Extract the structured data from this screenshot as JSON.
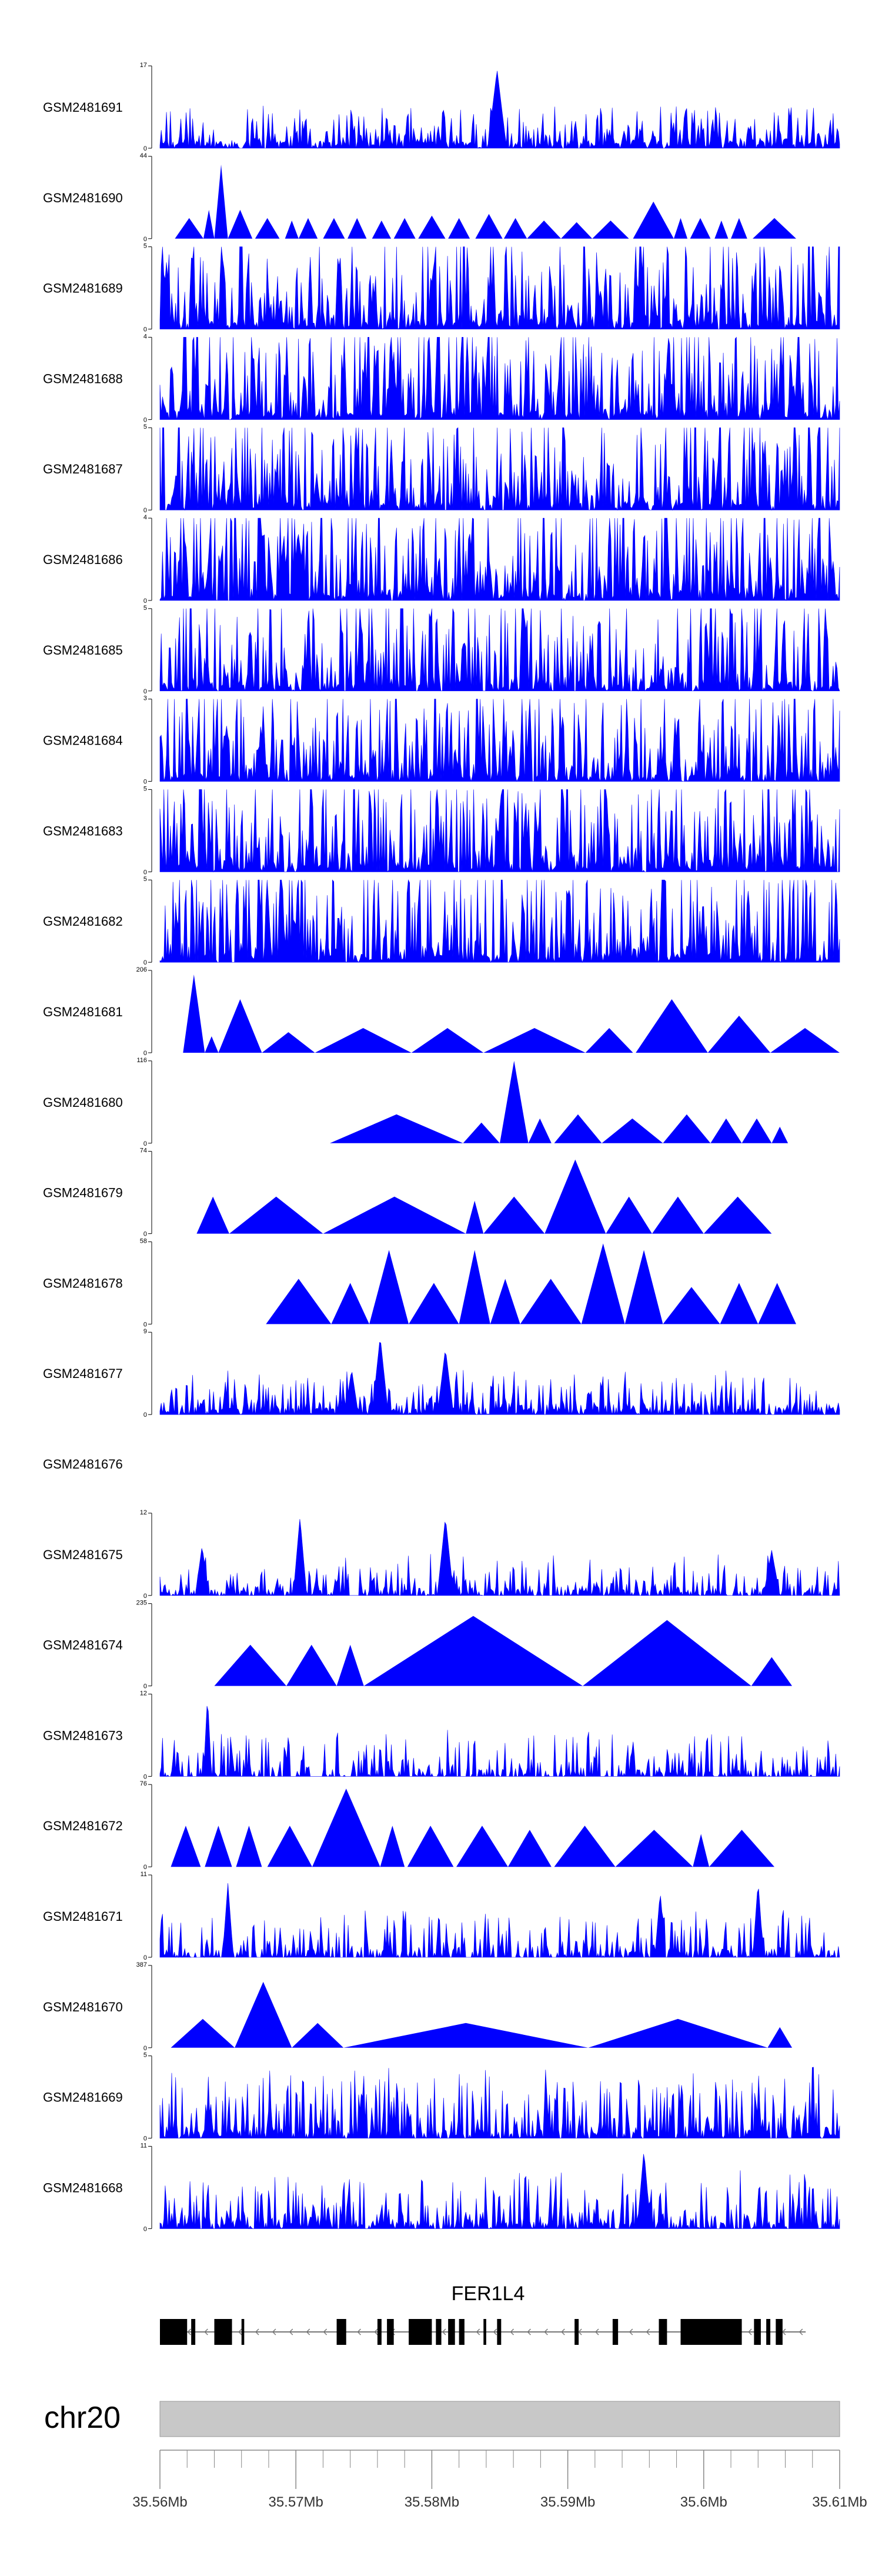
{
  "chart_data": {
    "type": "area",
    "color": "#0000ff",
    "x_range": [
      35.56,
      35.61
    ],
    "tracks": [
      {
        "label": "GSM2481691",
        "ymax": "17",
        "ymin": "0",
        "kind": "dense",
        "seed": 11,
        "density": 0.9,
        "peak_scale": 0.22,
        "features": [
          [
            35.5848,
            0.95,
            0.0007
          ]
        ]
      },
      {
        "label": "GSM2481690",
        "ymax": "44",
        "ymin": "0",
        "kind": "triangles",
        "tris": [
          [
            35.5611,
            35.5632,
            0.25
          ],
          [
            35.5632,
            35.564,
            0.35
          ],
          [
            35.564,
            35.565,
            0.9
          ],
          [
            35.565,
            35.5668,
            0.35
          ],
          [
            35.567,
            35.5688,
            0.25
          ],
          [
            35.5692,
            35.5702,
            0.22
          ],
          [
            35.5702,
            35.5716,
            0.25
          ],
          [
            35.572,
            35.5736,
            0.25
          ],
          [
            35.5738,
            35.5752,
            0.25
          ],
          [
            35.5756,
            35.577,
            0.22
          ],
          [
            35.5772,
            35.5788,
            0.25
          ],
          [
            35.579,
            35.581,
            0.28
          ],
          [
            35.5812,
            35.5828,
            0.25
          ],
          [
            35.5832,
            35.5852,
            0.3
          ],
          [
            35.5853,
            35.587,
            0.25
          ],
          [
            35.587,
            35.5895,
            0.22
          ],
          [
            35.5895,
            35.5918,
            0.2
          ],
          [
            35.5918,
            35.5945,
            0.22
          ],
          [
            35.5948,
            35.5978,
            0.45
          ],
          [
            35.5978,
            35.5988,
            0.25
          ],
          [
            35.599,
            35.6005,
            0.25
          ],
          [
            35.6008,
            35.6018,
            0.22
          ],
          [
            35.602,
            35.6032,
            0.25
          ],
          [
            35.6036,
            35.6068,
            0.25
          ]
        ]
      },
      {
        "label": "GSM2481689",
        "ymax": "5",
        "ymin": "0",
        "kind": "dense",
        "seed": 23,
        "density": 0.95,
        "peak_scale": 0.85,
        "features": []
      },
      {
        "label": "GSM2481688",
        "ymax": "4",
        "ymin": "0",
        "kind": "dense",
        "seed": 37,
        "density": 0.95,
        "peak_scale": 0.85,
        "features": []
      },
      {
        "label": "GSM2481687",
        "ymax": "5",
        "ymin": "0",
        "kind": "dense",
        "seed": 41,
        "density": 0.92,
        "peak_scale": 0.85,
        "features": []
      },
      {
        "label": "GSM2481686",
        "ymax": "4",
        "ymin": "0",
        "kind": "dense",
        "seed": 53,
        "density": 0.9,
        "peak_scale": 0.85,
        "features": []
      },
      {
        "label": "GSM2481685",
        "ymax": "5",
        "ymin": "0",
        "kind": "dense",
        "seed": 67,
        "density": 0.9,
        "peak_scale": 0.85,
        "features": []
      },
      {
        "label": "GSM2481684",
        "ymax": "3",
        "ymin": "0",
        "kind": "dense",
        "seed": 71,
        "density": 0.92,
        "peak_scale": 0.85,
        "features": []
      },
      {
        "label": "GSM2481683",
        "ymax": "5",
        "ymin": "0",
        "kind": "dense",
        "seed": 83,
        "density": 0.92,
        "peak_scale": 0.85,
        "features": []
      },
      {
        "label": "GSM2481682",
        "ymax": "5",
        "ymin": "0",
        "kind": "dense",
        "seed": 97,
        "density": 0.92,
        "peak_scale": 0.85,
        "features": []
      },
      {
        "label": "GSM2481681",
        "ymax": "206",
        "ymin": "0",
        "kind": "triangles",
        "tris": [
          [
            35.5617,
            35.5633,
            0.95
          ],
          [
            35.5633,
            35.5643,
            0.2
          ],
          [
            35.5643,
            35.5675,
            0.65
          ],
          [
            35.5675,
            35.5714,
            0.25
          ],
          [
            35.5714,
            35.5785,
            0.3
          ],
          [
            35.5785,
            35.5838,
            0.3
          ],
          [
            35.5838,
            35.5913,
            0.3
          ],
          [
            35.5913,
            35.5948,
            0.3
          ],
          [
            35.595,
            35.6003,
            0.65
          ],
          [
            35.6003,
            35.6049,
            0.45
          ],
          [
            35.6049,
            35.61,
            0.3
          ]
        ]
      },
      {
        "label": "GSM2481680",
        "ymax": "116",
        "ymin": "0",
        "kind": "triangles",
        "tris": [
          [
            35.5725,
            35.5823,
            0.35
          ],
          [
            35.5823,
            35.585,
            0.25
          ],
          [
            35.585,
            35.5871,
            1.0
          ],
          [
            35.5871,
            35.5888,
            0.3
          ],
          [
            35.589,
            35.5925,
            0.35
          ],
          [
            35.5925,
            35.597,
            0.3
          ],
          [
            35.597,
            35.6005,
            0.35
          ],
          [
            35.6005,
            35.6028,
            0.3
          ],
          [
            35.6028,
            35.605,
            0.3
          ],
          [
            35.605,
            35.6062,
            0.2
          ]
        ]
      },
      {
        "label": "GSM2481679",
        "ymax": "74",
        "ymin": "0",
        "kind": "triangles",
        "tris": [
          [
            35.5627,
            35.5651,
            0.45
          ],
          [
            35.5651,
            35.572,
            0.45
          ],
          [
            35.572,
            35.5825,
            0.45
          ],
          [
            35.5825,
            35.5838,
            0.4
          ],
          [
            35.5838,
            35.5883,
            0.45
          ],
          [
            35.5883,
            35.5928,
            0.9
          ],
          [
            35.5928,
            35.5962,
            0.45
          ],
          [
            35.5962,
            35.6,
            0.45
          ],
          [
            35.6,
            35.605,
            0.45
          ]
        ]
      },
      {
        "label": "GSM2481678",
        "ymax": "58",
        "ymin": "0",
        "kind": "triangles",
        "tris": [
          [
            35.5678,
            35.5726,
            0.55
          ],
          [
            35.5726,
            35.5754,
            0.5
          ],
          [
            35.5754,
            35.5783,
            0.9
          ],
          [
            35.5783,
            35.582,
            0.5
          ],
          [
            35.582,
            35.5843,
            0.9
          ],
          [
            35.5843,
            35.5865,
            0.55
          ],
          [
            35.5865,
            35.591,
            0.55
          ],
          [
            35.591,
            35.5942,
            0.98
          ],
          [
            35.5942,
            35.597,
            0.9
          ],
          [
            35.597,
            35.6012,
            0.45
          ],
          [
            35.6012,
            35.604,
            0.5
          ],
          [
            35.604,
            35.6068,
            0.5
          ]
        ]
      },
      {
        "label": "GSM2481677",
        "ymax": "9",
        "ymin": "0",
        "kind": "dense",
        "seed": 131,
        "density": 0.85,
        "peak_scale": 0.25,
        "features": [
          [
            35.5762,
            0.95,
            0.0006
          ],
          [
            35.581,
            0.8,
            0.0006
          ],
          [
            35.5741,
            0.55,
            0.0005
          ]
        ]
      },
      {
        "label": "GSM2481676",
        "ymax": "",
        "ymin": "",
        "kind": "empty"
      },
      {
        "label": "GSM2481675",
        "ymax": "12",
        "ymin": "0",
        "kind": "dense",
        "seed": 149,
        "density": 0.7,
        "peak_scale": 0.2,
        "features": [
          [
            35.5703,
            0.95,
            0.0005
          ],
          [
            35.581,
            0.95,
            0.0006
          ],
          [
            35.5631,
            0.6,
            0.0005
          ],
          [
            35.605,
            0.55,
            0.0006
          ]
        ]
      },
      {
        "label": "GSM2481674",
        "ymax": "235",
        "ymin": "0",
        "kind": "triangles",
        "tris": [
          [
            35.564,
            35.5693,
            0.5
          ],
          [
            35.5693,
            35.573,
            0.5
          ],
          [
            35.573,
            35.575,
            0.5
          ],
          [
            35.575,
            35.5911,
            0.85
          ],
          [
            35.5911,
            35.6035,
            0.8
          ],
          [
            35.6035,
            35.6065,
            0.35
          ]
        ]
      },
      {
        "label": "GSM2481673",
        "ymax": "12",
        "ymin": "0",
        "kind": "dense",
        "seed": 163,
        "density": 0.6,
        "peak_scale": 0.3,
        "features": [
          [
            35.5635,
            0.98,
            0.0003
          ]
        ]
      },
      {
        "label": "GSM2481672",
        "ymax": "76",
        "ymin": "0",
        "kind": "triangles",
        "tris": [
          [
            35.5608,
            35.563,
            0.5
          ],
          [
            35.5633,
            35.5653,
            0.5
          ],
          [
            35.5656,
            35.5675,
            0.5
          ],
          [
            35.5679,
            35.5712,
            0.5
          ],
          [
            35.5712,
            35.5762,
            0.95
          ],
          [
            35.5762,
            35.578,
            0.5
          ],
          [
            35.5782,
            35.5816,
            0.5
          ],
          [
            35.5818,
            35.5856,
            0.5
          ],
          [
            35.5856,
            35.5888,
            0.45
          ],
          [
            35.589,
            35.5935,
            0.5
          ],
          [
            35.5935,
            35.5992,
            0.45
          ],
          [
            35.5992,
            35.6004,
            0.4
          ],
          [
            35.6004,
            35.6052,
            0.45
          ]
        ]
      },
      {
        "label": "GSM2481671",
        "ymax": "11",
        "ymin": "0",
        "kind": "dense",
        "seed": 181,
        "density": 0.65,
        "peak_scale": 0.3,
        "features": [
          [
            35.565,
            0.9,
            0.0004
          ],
          [
            35.604,
            0.92,
            0.0004
          ],
          [
            35.5968,
            0.8,
            0.0004
          ]
        ]
      },
      {
        "label": "GSM2481670",
        "ymax": "387",
        "ymin": "0",
        "kind": "triangles",
        "tris": [
          [
            35.5608,
            35.5655,
            0.35
          ],
          [
            35.5655,
            35.5697,
            0.8
          ],
          [
            35.5697,
            35.5735,
            0.3
          ],
          [
            35.5735,
            35.5915,
            0.3
          ],
          [
            35.5915,
            35.6047,
            0.35
          ],
          [
            35.6047,
            35.6065,
            0.25
          ]
        ]
      },
      {
        "label": "GSM2481669",
        "ymax": "5",
        "ymin": "0",
        "kind": "dense",
        "seed": 199,
        "density": 0.85,
        "peak_scale": 0.5,
        "features": []
      },
      {
        "label": "GSM2481668",
        "ymax": "11",
        "ymin": "0",
        "kind": "dense",
        "seed": 211,
        "density": 0.8,
        "peak_scale": 0.4,
        "features": [
          [
            35.5956,
            0.95,
            0.0005
          ]
        ]
      }
    ],
    "gene": {
      "name": "FER1L4",
      "start": 35.56,
      "end": 35.6075,
      "strand": "-",
      "exons": [
        [
          35.56,
          35.562
        ],
        [
          35.5623,
          35.5626
        ],
        [
          35.564,
          35.5653
        ],
        [
          35.566,
          35.5662
        ],
        [
          35.573,
          35.5737
        ],
        [
          35.576,
          35.5763
        ],
        [
          35.5767,
          35.5772
        ],
        [
          35.5783,
          35.58
        ],
        [
          35.5803,
          35.5807
        ],
        [
          35.5812,
          35.5817
        ],
        [
          35.582,
          35.5824
        ],
        [
          35.5838,
          35.584
        ],
        [
          35.5848,
          35.5851
        ],
        [
          35.5905,
          35.5908
        ],
        [
          35.5933,
          35.5937
        ],
        [
          35.5967,
          35.5973
        ],
        [
          35.5983,
          35.6028
        ],
        [
          35.6037,
          35.6042
        ],
        [
          35.6046,
          35.6049
        ],
        [
          35.6053,
          35.6058
        ]
      ]
    },
    "axis": {
      "chromosome": "chr20",
      "ticks": [
        {
          "value": 35.56,
          "label": "35.56Mb"
        },
        {
          "value": 35.57,
          "label": "35.57Mb"
        },
        {
          "value": 35.58,
          "label": "35.58Mb"
        },
        {
          "value": 35.59,
          "label": "35.59Mb"
        },
        {
          "value": 35.6,
          "label": "35.6Mb"
        },
        {
          "value": 35.61,
          "label": "35.61Mb"
        }
      ],
      "minor_step": 0.002
    }
  }
}
